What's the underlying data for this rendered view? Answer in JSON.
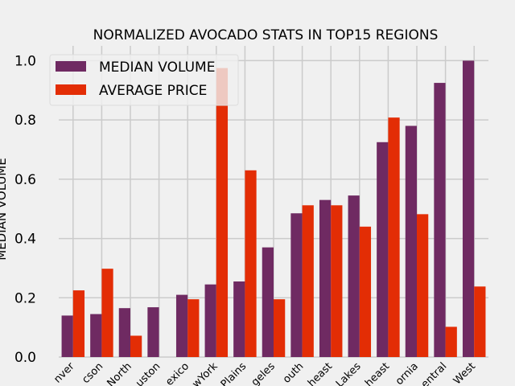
{
  "chart_data": {
    "type": "bar",
    "title": "NORMALIZED AVOCADO STATS IN TOP15 REGIONS",
    "xlabel": "",
    "ylabel": "MEDIAN VOLUME",
    "ylim": [
      0,
      1.05
    ],
    "yticks": [
      "0.0",
      "0.2",
      "0.4",
      "0.6",
      "0.8",
      "1.0"
    ],
    "categories": [
      "Denver",
      "Jacksonville",
      "North",
      "Houston",
      "Mexico",
      "NewYork",
      "Plains",
      "LosAngeles",
      "South",
      "Southeast",
      "GreatLakes",
      "Northeast",
      "California",
      "SouthCentral",
      "West"
    ],
    "category_labels_visible": [
      "nver",
      "cson",
      "North",
      "uston",
      "exico",
      "wYork",
      "Plains",
      "geles",
      "outh",
      "heast",
      "Lakes",
      "heast",
      "ornia",
      "entral",
      "West"
    ],
    "series": [
      {
        "name": "MEDIAN VOLUME",
        "color": "#6f2a62",
        "values": [
          0.14,
          0.145,
          0.165,
          0.168,
          0.21,
          0.245,
          0.255,
          0.37,
          0.485,
          0.53,
          0.545,
          0.725,
          0.78,
          0.925,
          1.0
        ]
      },
      {
        "name": "AVERAGE PRICE",
        "color": "#e32d05",
        "values": [
          0.225,
          0.298,
          0.072,
          0.0,
          0.195,
          0.975,
          0.63,
          0.195,
          0.512,
          0.512,
          0.44,
          0.808,
          0.482,
          0.102,
          0.238
        ]
      }
    ],
    "grid": true,
    "legend": "top-left"
  }
}
